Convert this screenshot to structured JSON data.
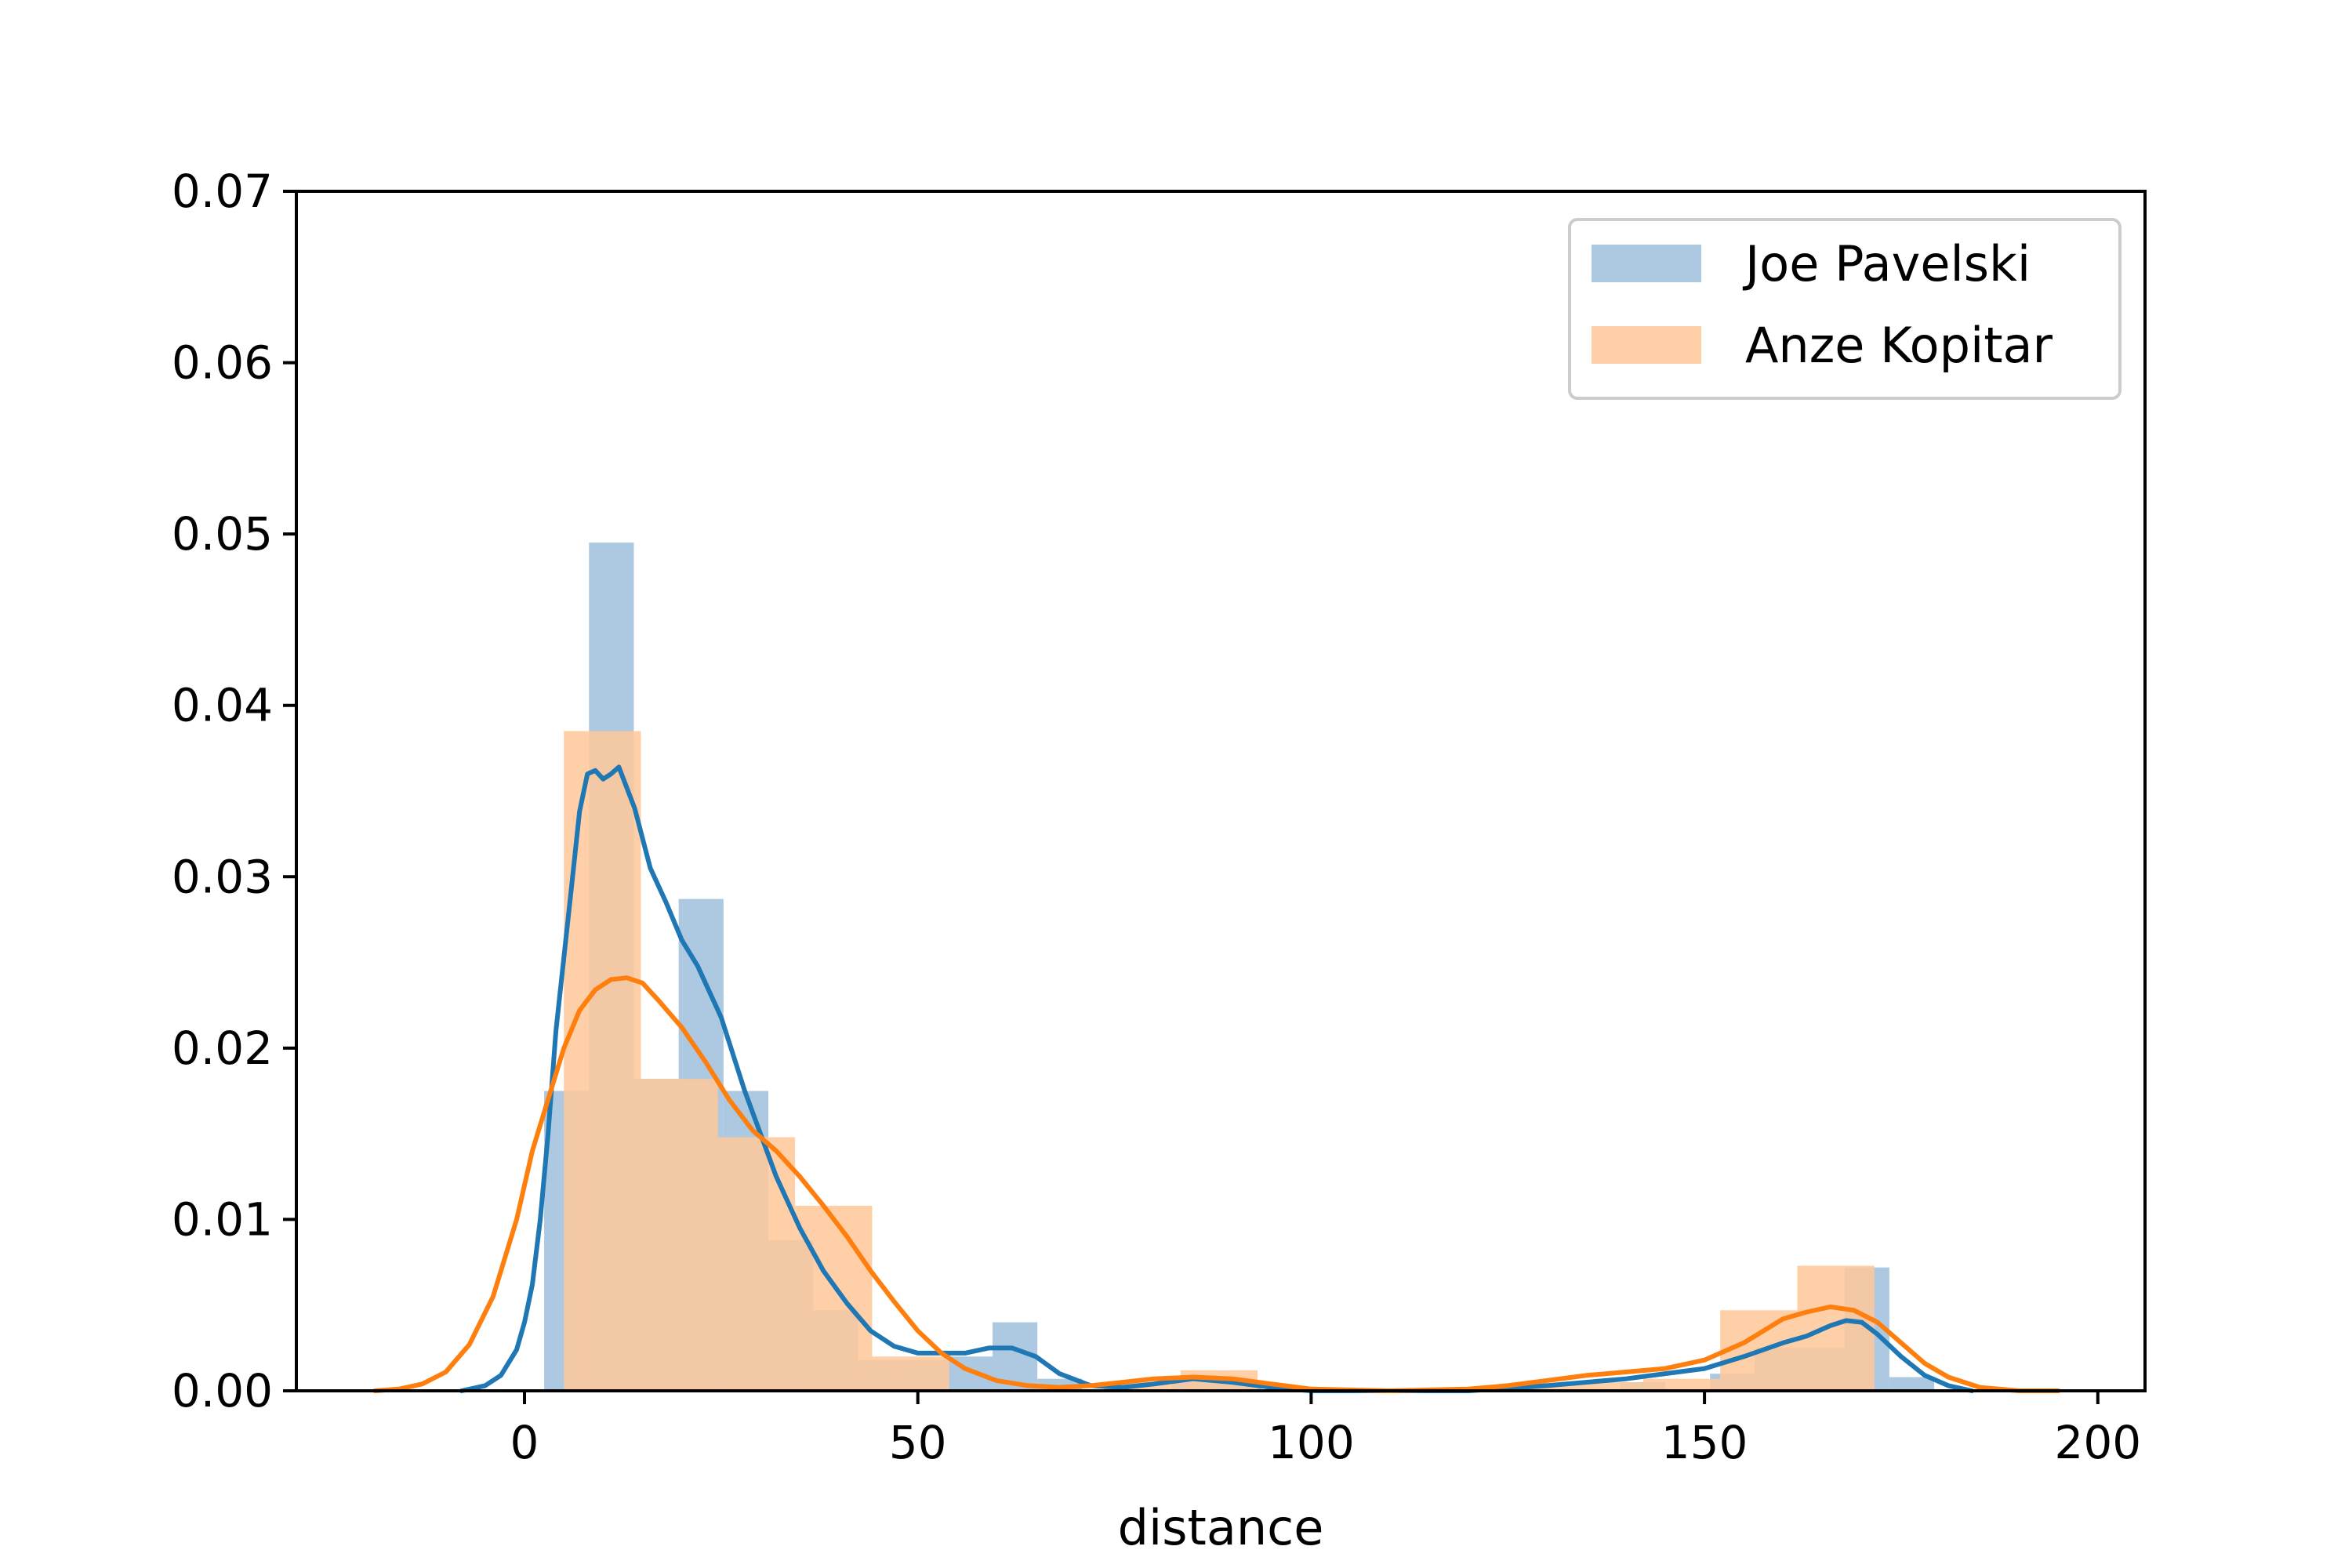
{
  "chart_data": {
    "type": "histogram-kde",
    "title": "",
    "xlabel": "distance",
    "ylabel": "",
    "xlim": [
      -29,
      206
    ],
    "ylim": [
      0,
      0.07
    ],
    "xticks": [
      0,
      50,
      100,
      150,
      200
    ],
    "yticks": [
      0.0,
      0.01,
      0.02,
      0.03,
      0.04,
      0.05,
      0.06,
      0.07
    ],
    "grid": false,
    "legend_position": "top-right",
    "series": [
      {
        "name": "Joe Pavelski",
        "bar_color": "#9ebfdc",
        "line_color": "#1f77b4",
        "bins": [
          {
            "x0": 2.5,
            "x1": 8.2,
            "value": 0.0175
          },
          {
            "x0": 8.2,
            "x1": 13.9,
            "value": 0.0495
          },
          {
            "x0": 13.9,
            "x1": 19.6,
            "value": 0.0182
          },
          {
            "x0": 19.6,
            "x1": 25.3,
            "value": 0.0287
          },
          {
            "x0": 25.3,
            "x1": 31.0,
            "value": 0.0175
          },
          {
            "x0": 31.0,
            "x1": 36.7,
            "value": 0.0088
          },
          {
            "x0": 36.7,
            "x1": 42.4,
            "value": 0.0047
          },
          {
            "x0": 42.4,
            "x1": 48.1,
            "value": 0.0018
          },
          {
            "x0": 48.1,
            "x1": 53.8,
            "value": 0.0018
          },
          {
            "x0": 53.8,
            "x1": 59.5,
            "value": 0.002
          },
          {
            "x0": 59.5,
            "x1": 65.2,
            "value": 0.004
          },
          {
            "x0": 65.2,
            "x1": 70.9,
            "value": 0.0007
          },
          {
            "x0": 82.3,
            "x1": 88.0,
            "value": 0.0005
          },
          {
            "x0": 88.0,
            "x1": 93.7,
            "value": 0.0005
          },
          {
            "x0": 139.3,
            "x1": 145.0,
            "value": 0.0005
          },
          {
            "x0": 150.7,
            "x1": 156.4,
            "value": 0.001
          },
          {
            "x0": 156.4,
            "x1": 162.1,
            "value": 0.0025
          },
          {
            "x0": 162.1,
            "x1": 167.8,
            "value": 0.0025
          },
          {
            "x0": 167.8,
            "x1": 173.5,
            "value": 0.0072
          },
          {
            "x0": 173.5,
            "x1": 179.2,
            "value": 0.0008
          }
        ],
        "kde_x": [
          -8,
          -5,
          -3,
          -1,
          0,
          1,
          2,
          3,
          4,
          6,
          7,
          8,
          9,
          10,
          11,
          12,
          13,
          14,
          16,
          18,
          20,
          22,
          25,
          28,
          30,
          32,
          35,
          38,
          41,
          44,
          47,
          50,
          53,
          56,
          59,
          62,
          65,
          68,
          72,
          76,
          80,
          85,
          90,
          95,
          100,
          110,
          120,
          130,
          140,
          145,
          150,
          155,
          160,
          163,
          166,
          168,
          170,
          172,
          175,
          178,
          181,
          184
        ],
        "kde_y": [
          0.0,
          0.0003,
          0.0009,
          0.0024,
          0.004,
          0.0062,
          0.01,
          0.015,
          0.021,
          0.0295,
          0.0338,
          0.036,
          0.0362,
          0.0357,
          0.036,
          0.0364,
          0.0352,
          0.034,
          0.0305,
          0.0285,
          0.0263,
          0.0248,
          0.0218,
          0.0175,
          0.015,
          0.0125,
          0.0095,
          0.007,
          0.0051,
          0.0035,
          0.0026,
          0.0022,
          0.0022,
          0.0022,
          0.0025,
          0.0025,
          0.002,
          0.001,
          0.0003,
          0.0002,
          0.0004,
          0.0007,
          0.0005,
          0.0002,
          0.0,
          0.0,
          0.0,
          0.0003,
          0.0007,
          0.001,
          0.0013,
          0.002,
          0.0028,
          0.0032,
          0.0038,
          0.0041,
          0.004,
          0.0033,
          0.002,
          0.0009,
          0.0003,
          0.0
        ]
      },
      {
        "name": "Anze Kopitar",
        "bar_color": "#ffc899",
        "line_color": "#ff7f0e",
        "bins": [
          {
            "x0": 5.0,
            "x1": 14.8,
            "value": 0.0385
          },
          {
            "x0": 14.8,
            "x1": 24.6,
            "value": 0.0182
          },
          {
            "x0": 24.6,
            "x1": 34.4,
            "value": 0.0148
          },
          {
            "x0": 34.4,
            "x1": 44.2,
            "value": 0.0108
          },
          {
            "x0": 44.2,
            "x1": 54.0,
            "value": 0.002
          },
          {
            "x0": 73.6,
            "x1": 83.4,
            "value": 0.0005
          },
          {
            "x0": 83.4,
            "x1": 93.2,
            "value": 0.0012
          },
          {
            "x0": 122.6,
            "x1": 132.4,
            "value": 0.0003
          },
          {
            "x0": 132.4,
            "x1": 142.2,
            "value": 0.0005
          },
          {
            "x0": 142.2,
            "x1": 152.0,
            "value": 0.0007
          },
          {
            "x0": 152.0,
            "x1": 161.8,
            "value": 0.0047
          },
          {
            "x0": 161.8,
            "x1": 171.6,
            "value": 0.0073
          }
        ],
        "kde_x": [
          -19,
          -16,
          -13,
          -10,
          -7,
          -4,
          -1,
          1,
          3,
          5,
          7,
          9,
          11,
          13,
          15,
          17,
          20,
          23,
          26,
          29,
          32,
          35,
          38,
          41,
          44,
          47,
          50,
          53,
          56,
          60,
          64,
          68,
          72,
          76,
          80,
          85,
          90,
          95,
          100,
          110,
          120,
          125,
          130,
          135,
          140,
          145,
          150,
          155,
          160,
          163,
          166,
          169,
          172,
          175,
          178,
          181,
          185,
          190,
          195
        ],
        "kde_y": [
          0.0,
          0.0001,
          0.0004,
          0.0011,
          0.0027,
          0.0055,
          0.01,
          0.014,
          0.017,
          0.02,
          0.0222,
          0.0234,
          0.024,
          0.0241,
          0.0238,
          0.0228,
          0.0212,
          0.0192,
          0.017,
          0.0152,
          0.014,
          0.0125,
          0.0108,
          0.009,
          0.007,
          0.0052,
          0.0035,
          0.0022,
          0.0013,
          0.0006,
          0.0003,
          0.0002,
          0.0003,
          0.0005,
          0.0007,
          0.0008,
          0.0007,
          0.0004,
          0.0001,
          0.0,
          0.0001,
          0.0003,
          0.0006,
          0.0009,
          0.0011,
          0.0013,
          0.0018,
          0.0028,
          0.0042,
          0.0046,
          0.0049,
          0.0047,
          0.004,
          0.0028,
          0.0016,
          0.0008,
          0.0002,
          0.0,
          0.0
        ]
      }
    ]
  }
}
